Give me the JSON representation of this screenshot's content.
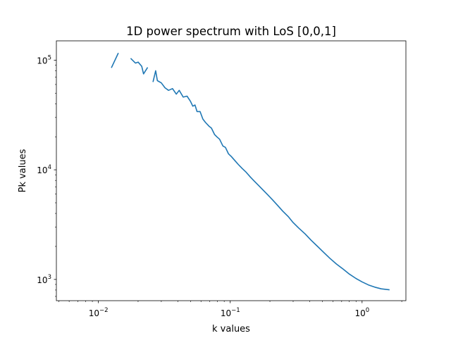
{
  "chart_data": {
    "type": "line",
    "title": "1D power spectrum with LoS [0,0,1]",
    "xlabel": "k values",
    "ylabel": "Pk values",
    "xscale": "log",
    "yscale": "log",
    "xlim": [
      0.0048,
      2.15
    ],
    "ylim": [
      640,
      150000
    ],
    "grid": false,
    "x_ticks": [
      {
        "value": 0.01,
        "base": "10",
        "exp": "−2"
      },
      {
        "value": 0.1,
        "base": "10",
        "exp": "−1"
      },
      {
        "value": 1,
        "base": "10",
        "exp": "0"
      }
    ],
    "y_ticks": [
      {
        "value": 1000,
        "base": "10",
        "exp": "3"
      },
      {
        "value": 10000,
        "base": "10",
        "exp": "4"
      },
      {
        "value": 100000,
        "base": "10",
        "exp": "5"
      }
    ],
    "series": [
      {
        "color": "#1f77b4",
        "segments": [
          [
            [
              0.0126,
              86000
            ],
            [
              0.0141,
              115000
            ]
          ],
          [
            [
              0.0177,
              103000
            ],
            [
              0.0191,
              94000
            ],
            [
              0.02,
              96000
            ],
            [
              0.0213,
              88000
            ],
            [
              0.022,
              75000
            ],
            [
              0.0235,
              85000
            ]
          ],
          [
            [
              0.026,
              64000
            ],
            [
              0.0272,
              80000
            ],
            [
              0.028,
              65000
            ],
            [
              0.03,
              62000
            ],
            [
              0.032,
              56000
            ],
            [
              0.034,
              53000
            ],
            [
              0.0365,
              55000
            ],
            [
              0.039,
              49000
            ],
            [
              0.041,
              53000
            ],
            [
              0.044,
              46000
            ],
            [
              0.047,
              47000
            ],
            [
              0.05,
              42000
            ],
            [
              0.052,
              38000
            ],
            [
              0.054,
              39000
            ],
            [
              0.056,
              34000
            ],
            [
              0.059,
              34000
            ],
            [
              0.062,
              29000
            ],
            [
              0.065,
              27000
            ],
            [
              0.069,
              25000
            ],
            [
              0.072,
              24000
            ],
            [
              0.076,
              21000
            ],
            [
              0.079,
              20000
            ],
            [
              0.083,
              19000
            ],
            [
              0.088,
              16500
            ],
            [
              0.092,
              16000
            ],
            [
              0.097,
              14000
            ],
            [
              0.102,
              13200
            ],
            [
              0.108,
              12200
            ],
            [
              0.115,
              11200
            ],
            [
              0.123,
              10300
            ],
            [
              0.132,
              9500
            ],
            [
              0.142,
              8600
            ],
            [
              0.152,
              7900
            ],
            [
              0.164,
              7200
            ],
            [
              0.178,
              6500
            ],
            [
              0.193,
              5900
            ],
            [
              0.21,
              5300
            ],
            [
              0.23,
              4700
            ],
            [
              0.25,
              4200
            ],
            [
              0.275,
              3750
            ],
            [
              0.3,
              3300
            ],
            [
              0.33,
              2950
            ],
            [
              0.37,
              2600
            ],
            [
              0.41,
              2280
            ],
            [
              0.46,
              2000
            ],
            [
              0.51,
              1770
            ],
            [
              0.57,
              1560
            ],
            [
              0.64,
              1380
            ],
            [
              0.72,
              1240
            ],
            [
              0.8,
              1120
            ],
            [
              0.9,
              1020
            ],
            [
              1.0,
              950
            ],
            [
              1.12,
              890
            ],
            [
              1.25,
              850
            ],
            [
              1.4,
              820
            ],
            [
              1.6,
              805
            ]
          ]
        ]
      }
    ]
  }
}
